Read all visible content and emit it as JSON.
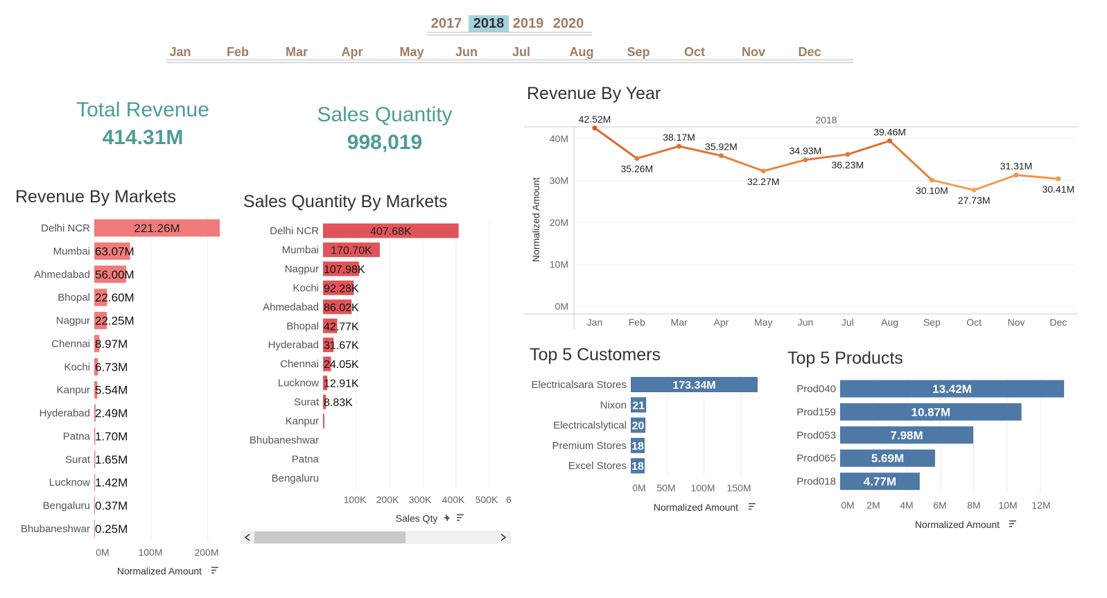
{
  "filters": {
    "years": [
      "2017",
      "2018",
      "2019",
      "2020"
    ],
    "selected_year": "2018",
    "months": [
      "Jan",
      "Feb",
      "Mar",
      "Apr",
      "May",
      "Jun",
      "Jul",
      "Aug",
      "Sep",
      "Oct",
      "Nov",
      "Dec"
    ]
  },
  "kpis": {
    "total_revenue_label": "Total Revenue",
    "total_revenue_value": "414.31M",
    "sales_quantity_label": "Sales Quantity",
    "sales_quantity_value": "998,019"
  },
  "colors": {
    "kpi": "#4e9c97",
    "revenue_bars": "#f07b7b",
    "qty_bars": "#e0555a",
    "blue_bars": "#4e79a7",
    "line_dark": "#d9622b",
    "line_light": "#f2a65a",
    "filter_text": "#a17c62",
    "filter_selected_bg": "#a5d3dd"
  },
  "chart_data": [
    {
      "id": "revenue_by_markets",
      "type": "bar",
      "orientation": "horizontal",
      "title": "Revenue By Markets",
      "xlabel": "Normalized Amount",
      "xlim": [
        0,
        220
      ],
      "x_ticks": [
        "0M",
        "100M",
        "200M"
      ],
      "categories": [
        "Delhi NCR",
        "Mumbai",
        "Ahmedabad",
        "Bhopal",
        "Nagpur",
        "Chennai",
        "Kochi",
        "Kanpur",
        "Hyderabad",
        "Patna",
        "Surat",
        "Lucknow",
        "Bengaluru",
        "Bhubaneshwar"
      ],
      "values": [
        221.26,
        63.07,
        56.0,
        22.6,
        22.25,
        8.97,
        6.73,
        5.54,
        2.49,
        1.7,
        1.65,
        1.42,
        0.37,
        0.25
      ],
      "labels": [
        "221.26M",
        "63.07M",
        "56.00M",
        "22.60M",
        "22.25M",
        "8.97M",
        "6.73M",
        "5.54M",
        "2.49M",
        "1.70M",
        "1.65M",
        "1.42M",
        "0.37M",
        "0.25M"
      ]
    },
    {
      "id": "sales_qty_by_markets",
      "type": "bar",
      "orientation": "horizontal",
      "title": "Sales Quantity By Markets",
      "xlabel": "Sales Qty",
      "xlim": [
        0,
        600
      ],
      "x_ticks": [
        "100K",
        "200K",
        "300K",
        "400K",
        "500K",
        "6"
      ],
      "categories": [
        "Delhi NCR",
        "Mumbai",
        "Nagpur",
        "Kochi",
        "Ahmedabad",
        "Bhopal",
        "Hyderabad",
        "Chennai",
        "Lucknow",
        "Surat",
        "Kanpur",
        "Bhubaneshwar",
        "Patna",
        "Bengaluru"
      ],
      "values": [
        407.68,
        170.7,
        107.98,
        92.28,
        86.02,
        42.77,
        31.67,
        24.05,
        12.91,
        8.83,
        2,
        0,
        0,
        0
      ],
      "labels": [
        "407.68K",
        "170.70K",
        "107.98K",
        "92.28K",
        "86.02K",
        "42.77K",
        "31.67K",
        "24.05K",
        "12.91K",
        "8.83K",
        "",
        "",
        "",
        ""
      ]
    },
    {
      "id": "revenue_by_year",
      "type": "line",
      "title": "Revenue By Year",
      "header": "2018",
      "ylabel": "Normalized Amount",
      "ylim": [
        0,
        45
      ],
      "y_ticks": [
        "0M",
        "10M",
        "20M",
        "30M",
        "40M"
      ],
      "x": [
        "Jan",
        "Feb",
        "Mar",
        "Apr",
        "May",
        "Jun",
        "Jul",
        "Aug",
        "Sep",
        "Oct",
        "Nov",
        "Dec"
      ],
      "values": [
        42.52,
        35.26,
        38.17,
        35.92,
        32.27,
        34.93,
        36.23,
        39.46,
        30.1,
        27.73,
        31.31,
        30.41
      ],
      "labels": [
        "42.52M",
        "35.26M",
        "38.17M",
        "35.92M",
        "32.27M",
        "34.93M",
        "36.23M",
        "39.46M",
        "30.10M",
        "27.73M",
        "31.31M",
        "30.41M"
      ]
    },
    {
      "id": "top5_customers",
      "type": "bar",
      "orientation": "horizontal",
      "title": "Top 5 Customers",
      "xlabel": "Normalized Amount",
      "xlim": [
        0,
        180
      ],
      "x_ticks": [
        "0M",
        "50M",
        "100M",
        "150M"
      ],
      "categories": [
        "Electricalsara Stores",
        "Nixon",
        "Electricalslytical",
        "Premium Stores",
        "Excel Stores"
      ],
      "values": [
        173.34,
        21,
        20,
        18,
        18
      ],
      "labels": [
        "173.34M",
        "21",
        "20",
        "18",
        "18"
      ]
    },
    {
      "id": "top5_products",
      "type": "bar",
      "orientation": "horizontal",
      "title": "Top 5 Products",
      "xlabel": "Normalized Amount",
      "xlim": [
        0,
        13.5
      ],
      "x_ticks": [
        "0M",
        "2M",
        "4M",
        "6M",
        "8M",
        "10M",
        "12M"
      ],
      "categories": [
        "Prod040",
        "Prod159",
        "Prod053",
        "Prod065",
        "Prod018"
      ],
      "values": [
        13.42,
        10.87,
        7.98,
        5.69,
        4.77
      ],
      "labels": [
        "13.42M",
        "10.87M",
        "7.98M",
        "5.69M",
        "4.77M"
      ]
    }
  ]
}
